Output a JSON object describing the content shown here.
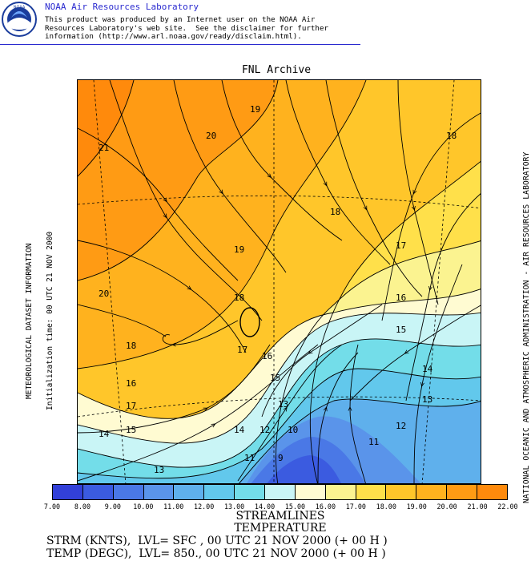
{
  "header": {
    "org_name": "NOAA Air Resources Laboratory",
    "disclaimer_lines": [
      "This product was produced by an Internet user on the NOAA Air",
      "Resources Laboratory's web site.  See the disclaimer for further",
      "information (http://www.arl.noaa.gov/ready/disclaim.html)."
    ],
    "logo_text": "NOAA"
  },
  "map": {
    "title": "FNL Archive",
    "left_label_1": "METEOROLOGICAL DATASET INFORMATION",
    "left_label_2": "Initialization time: 00 UTC 21 NOV 2000",
    "right_label": "NATIONAL OCEANIC AND ATMOSPHERIC ADMINISTRATION - AIR RESOURCES LABORATORY",
    "contour_labels": [
      {
        "text": "21"
      },
      {
        "text": "20"
      },
      {
        "text": "19"
      },
      {
        "text": "18"
      },
      {
        "text": "18"
      },
      {
        "text": "17"
      },
      {
        "text": "19"
      },
      {
        "text": "20"
      },
      {
        "text": "18"
      },
      {
        "text": "16"
      },
      {
        "text": "18"
      },
      {
        "text": "17"
      },
      {
        "text": "16"
      },
      {
        "text": "15"
      },
      {
        "text": "16"
      },
      {
        "text": "17"
      },
      {
        "text": "15"
      },
      {
        "text": "14"
      },
      {
        "text": "15"
      },
      {
        "text": "13"
      },
      {
        "text": "14"
      },
      {
        "text": "13"
      },
      {
        "text": "14"
      },
      {
        "text": "12"
      },
      {
        "text": "10"
      },
      {
        "text": "12"
      },
      {
        "text": "11"
      },
      {
        "text": "11"
      },
      {
        "text": "9"
      },
      {
        "text": "13"
      }
    ]
  },
  "colorbar": {
    "colors": [
      "#3240d8",
      "#3b5be0",
      "#4a78e6",
      "#5a94ea",
      "#5fb0ec",
      "#62c8ec",
      "#73dde9",
      "#c9f5f6",
      "#fffbd2",
      "#fbf390",
      "#ffe04a",
      "#ffc62a",
      "#ffb21e",
      "#ff9b14",
      "#ff8a0c"
    ],
    "ticks": [
      "7.00",
      "8.00",
      "9.00",
      "10.00",
      "11.00",
      "12.00",
      "13.00",
      "14.00",
      "15.00",
      "16.00",
      "17.00",
      "18.00",
      "19.00",
      "20.00",
      "21.00",
      "22.00"
    ]
  },
  "legend": {
    "title_1": "STREAMLINES",
    "title_2": "TEMPERATURE",
    "line_1": "STRM (KNTS),  LVL= SFC , 00 UTC 21 NOV 2000 (+ 00 H )",
    "line_2": "TEMP (DEGC),  LVL= 850., 00 UTC 21 NOV 2000 (+ 00 H )"
  }
}
